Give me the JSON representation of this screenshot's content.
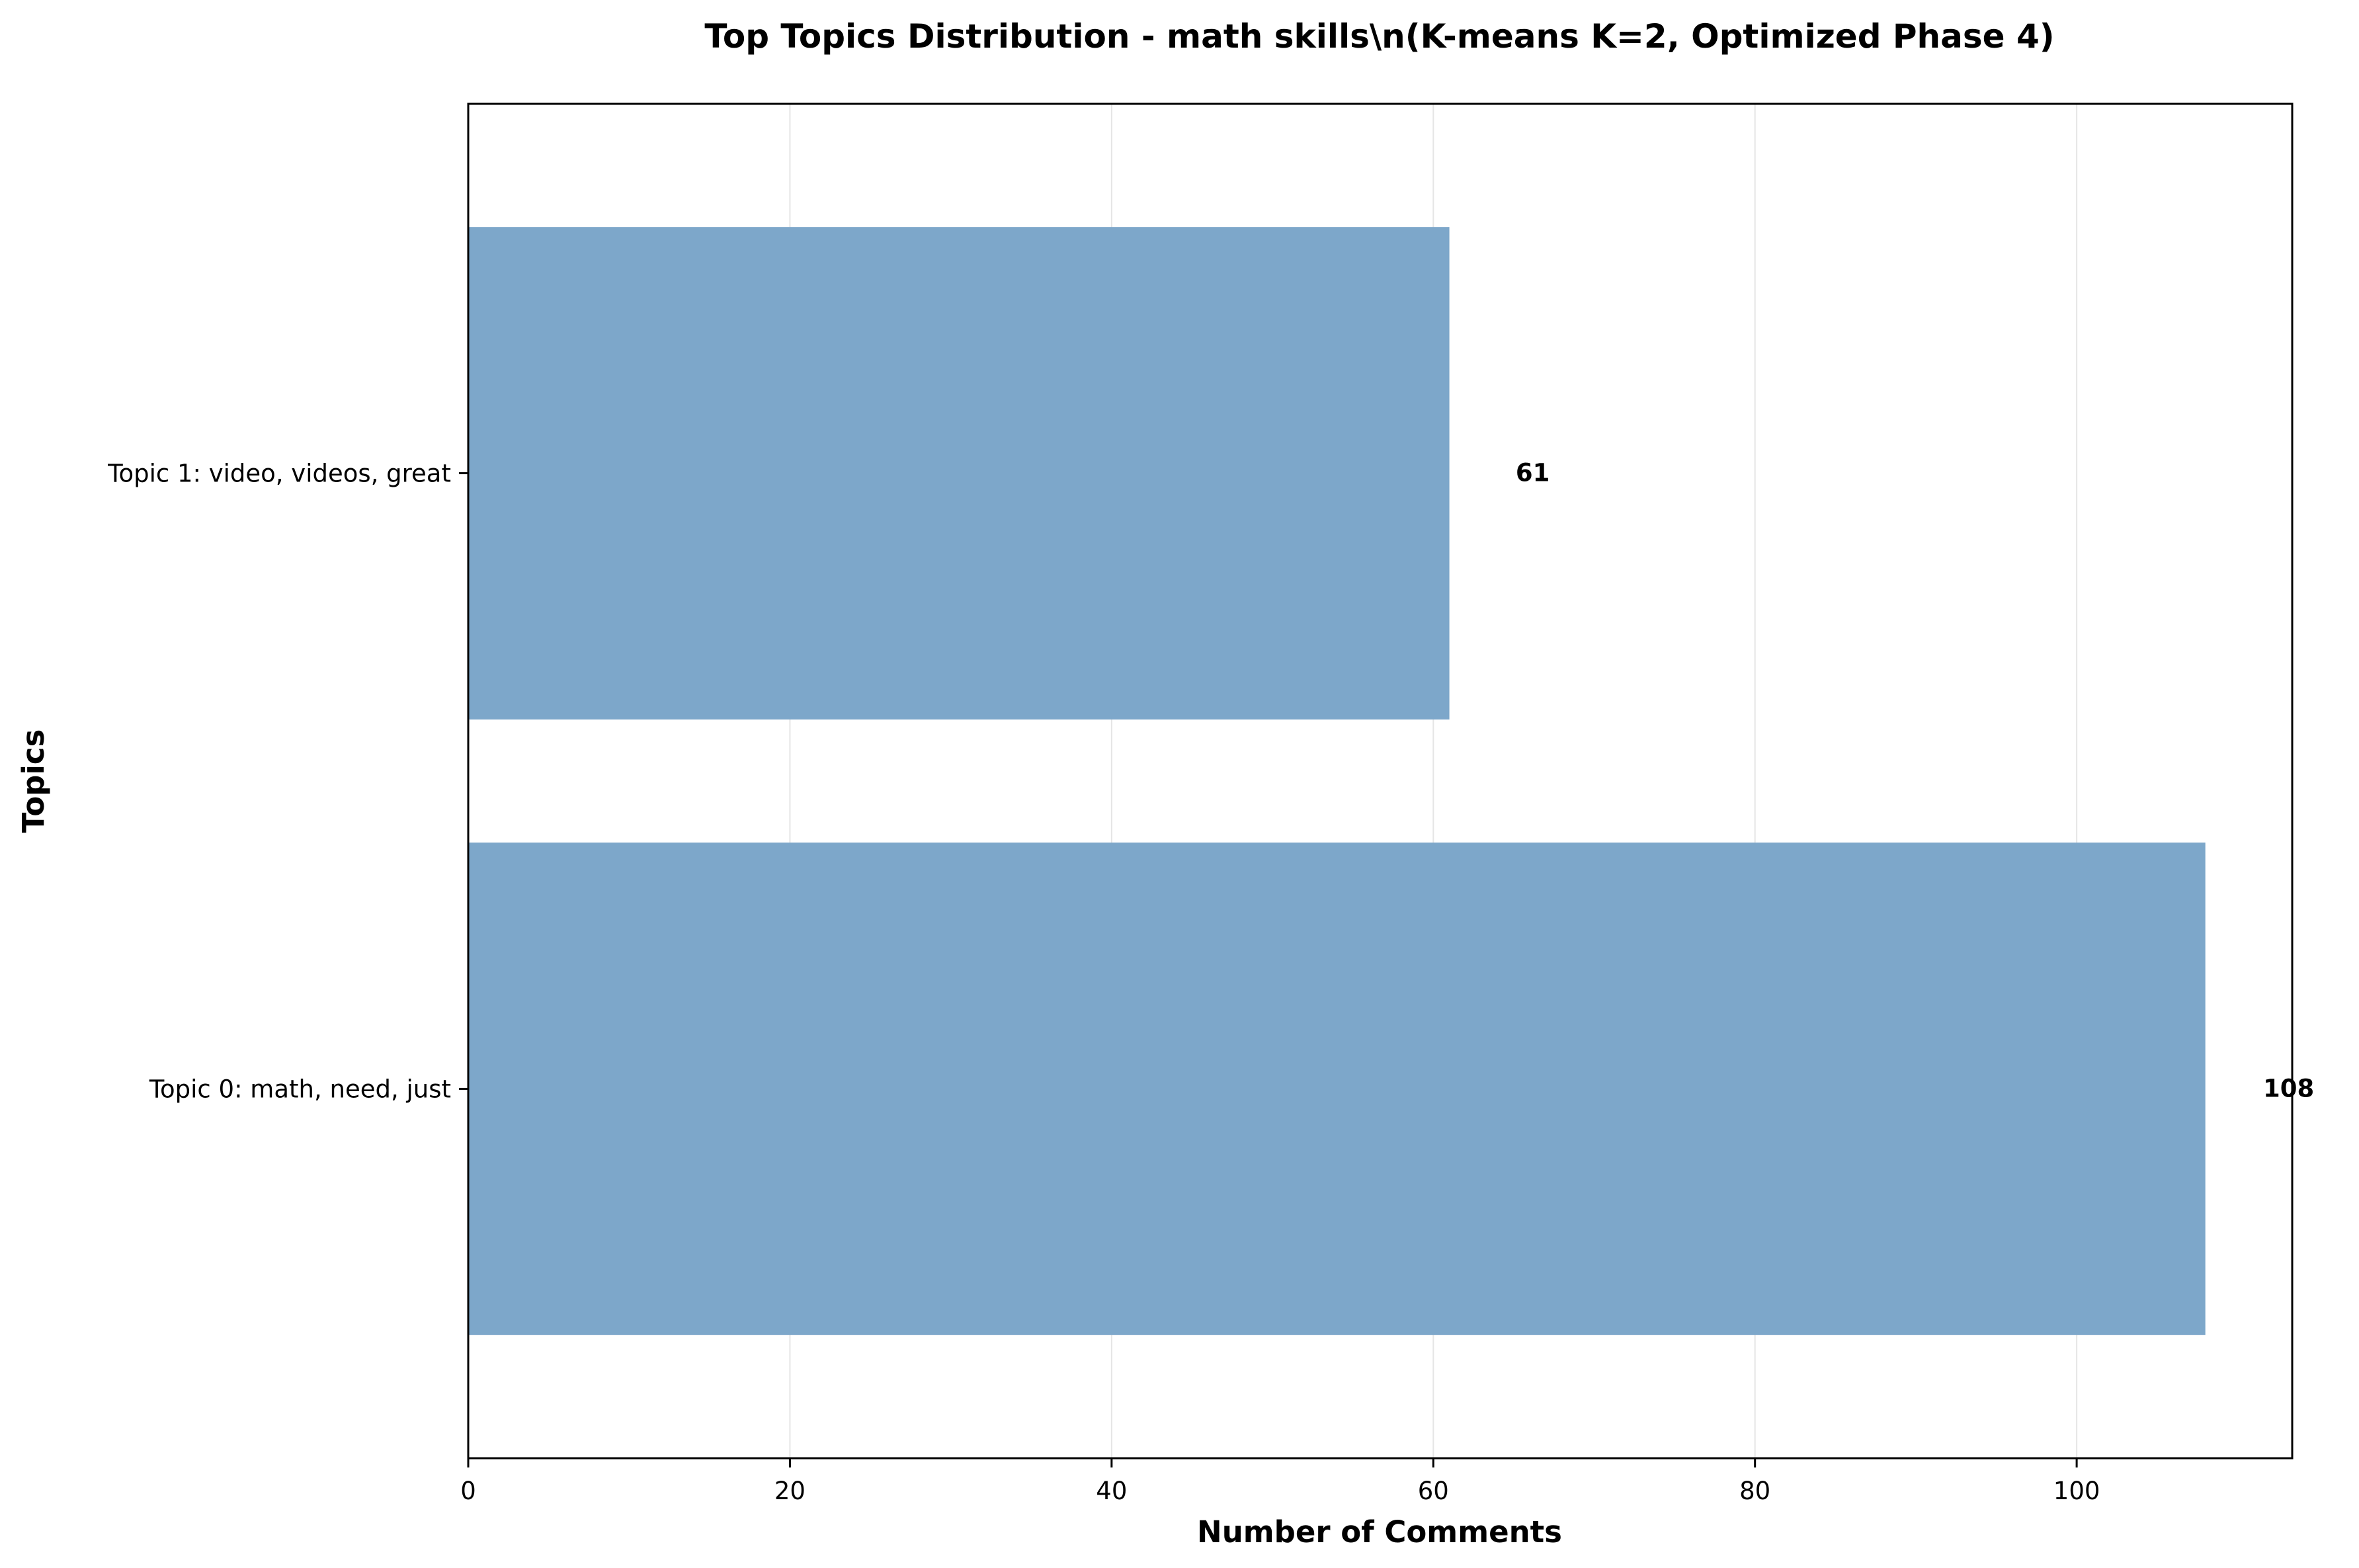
{
  "chart_data": {
    "type": "bar",
    "orientation": "horizontal",
    "title": "Top Topics Distribution - math skills\\n(K-means K=2, Optimized Phase 4)",
    "xlabel": "Number of Comments",
    "ylabel": "Topics",
    "categories": [
      "Topic 1: video, videos, great",
      "Topic 0: math, need, just"
    ],
    "values": [
      61,
      108
    ],
    "data_labels": [
      "61",
      "108"
    ],
    "xlim": [
      0,
      113.4
    ],
    "xticks": [
      0,
      20,
      40,
      60,
      80,
      100
    ],
    "xtick_labels": [
      "0",
      "20",
      "40",
      "60",
      "80",
      "100"
    ],
    "grid": "x",
    "bar_color": "#7da7ca",
    "grid_color": "#e5e5e5",
    "axis_color": "#000000"
  }
}
